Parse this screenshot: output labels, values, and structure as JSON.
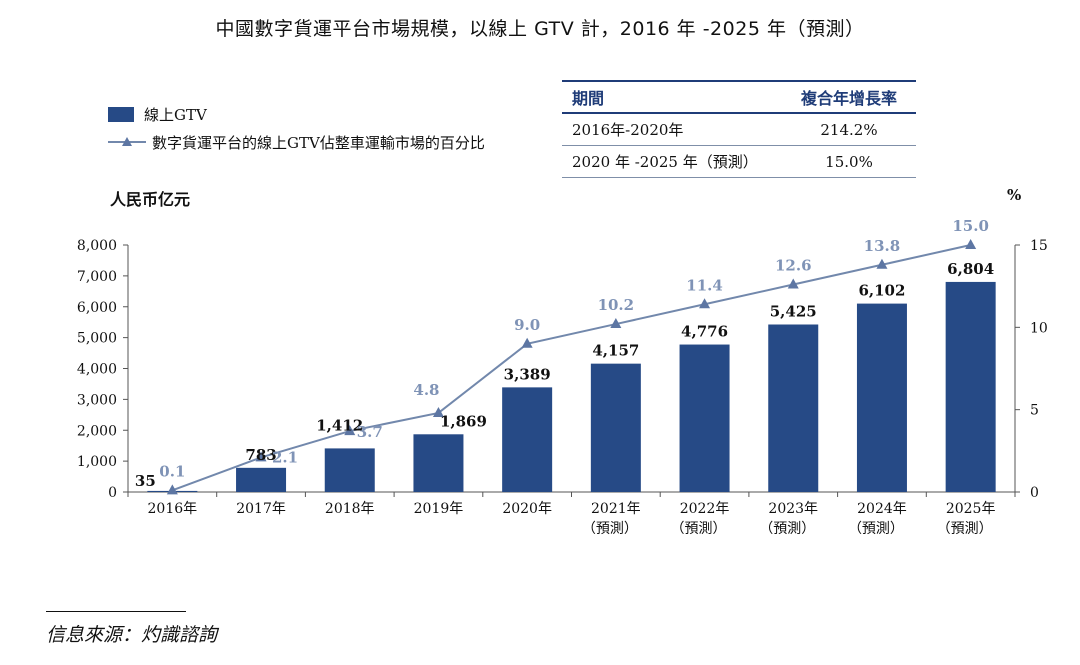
{
  "title": "中國數字貨運平台市場規模，以線上 GTV 計，2016 年 -2025 年（預測）",
  "legend": {
    "bar_label": "線上GTV",
    "line_label": "數字貨運平台的線上GTV佔整車運輸市場的百分比"
  },
  "cagr_table": {
    "headers": [
      "期間",
      "複合年增長率"
    ],
    "rows": [
      [
        "2016年-2020年",
        "214.2%"
      ],
      [
        "2020 年 -2025 年（預測）",
        "15.0%"
      ]
    ]
  },
  "source": "信息來源：灼識諮詢",
  "colors": {
    "bar": "#264a86",
    "line": "#7288ac",
    "line_label": "#7f93b6",
    "axis": "#555555"
  },
  "chart_data": {
    "type": "bar",
    "categories": [
      "2016年",
      "2017年",
      "2018年",
      "2019年",
      "2020年",
      "2021年",
      "2022年",
      "2023年",
      "2024年",
      "2025年"
    ],
    "category_sublabels": [
      "",
      "",
      "",
      "",
      "",
      "（預測）",
      "（預測）",
      "（預測）",
      "（預測）",
      "（預測）"
    ],
    "ylabel": "人民币亿元",
    "y2label": "%",
    "ylim": [
      0,
      8000
    ],
    "y_ticks": [
      "0",
      "1,000",
      "2,000",
      "3,000",
      "4,000",
      "5,000",
      "6,000",
      "7,000",
      "8,000"
    ],
    "y2lim": [
      0,
      15
    ],
    "y2_ticks": [
      "0",
      "5",
      "10",
      "15"
    ],
    "series": [
      {
        "name": "線上GTV",
        "type": "bar",
        "values": [
          35,
          783,
          1412,
          1869,
          3389,
          4157,
          4776,
          5425,
          6102,
          6804
        ],
        "labels": [
          "35",
          "783",
          "1,412",
          "1,869",
          "3,389",
          "4,157",
          "4,776",
          "5,425",
          "6,102",
          "6,804"
        ]
      },
      {
        "name": "數字貨運平台的線上GTV佔整車運輸市場的百分比",
        "type": "line",
        "axis": "right",
        "values": [
          0.1,
          2.1,
          3.7,
          4.8,
          9.0,
          10.2,
          11.4,
          12.6,
          13.8,
          15.0
        ],
        "labels": [
          "0.1",
          "2.1",
          "3.7",
          "4.8",
          "9.0",
          "10.2",
          "11.4",
          "12.6",
          "13.8",
          "15.0"
        ]
      }
    ]
  }
}
